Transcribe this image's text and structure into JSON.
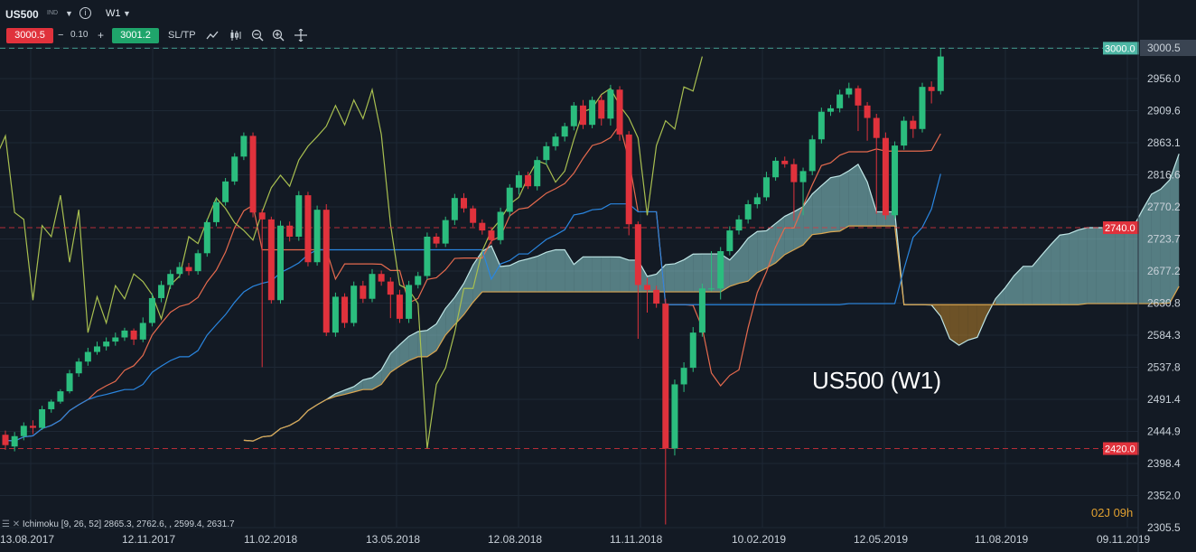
{
  "header": {
    "symbol": "US500",
    "symbol_tag": "IND",
    "timeframe": "W1",
    "sell_price": "3000.5",
    "spread": "0.10",
    "buy_price": "3001.2",
    "sl_tp_label": "SL/TP",
    "icons": [
      "line-chart-icon",
      "candles-icon",
      "zoom-out-icon",
      "zoom-in-icon",
      "crosshair-icon"
    ]
  },
  "colors": {
    "background": "#131a24",
    "bull": "#2bbd7e",
    "bear": "#e0323c",
    "tenkan": "#e56a4e",
    "kijun": "#2a86e0",
    "chikou": "#a8bf50",
    "kumo_bull": "#8ccfcf",
    "kumo_bear": "#b8822a",
    "price_line": "#4db6a4"
  },
  "indicator_legend": {
    "name": "Ichimoku [9, 26, 52]",
    "values": "2865.3, 2762.6, , 2599.4, 2631.7"
  },
  "countdown": "02J 09h",
  "chart_data": {
    "type": "candlestick",
    "title": "US500 (W1)",
    "ylim": [
      2305.5,
      3000.5
    ],
    "y_ticks": [
      "2305.5",
      "2352.0",
      "2398.4",
      "2444.9",
      "2491.4",
      "2537.8",
      "2584.3",
      "2630.8",
      "2677.2",
      "2723.7",
      "2770.2",
      "2816.6",
      "2863.1",
      "2909.6",
      "2956.0",
      "3000.5"
    ],
    "x_ticks": [
      "13.08.2017",
      "12.11.2017",
      "11.02.2018",
      "13.05.2018",
      "12.08.2018",
      "11.11.2018",
      "10.02.2019",
      "12.05.2019",
      "11.08.2019",
      "09.11.2019"
    ],
    "horizontal_levels": [
      {
        "label": "3000.0",
        "value": 3000.0,
        "style": "dashed",
        "color": "#4db6a4"
      },
      {
        "label": "2740.0",
        "value": 2740.0,
        "style": "dashed",
        "color": "#e0323c"
      },
      {
        "label": "2420.0",
        "value": 2420.0,
        "style": "dashed",
        "color": "#e0323c"
      }
    ],
    "current_price": "3000.5",
    "candles": [
      [
        2440,
        2425,
        2446,
        2418
      ],
      [
        2423,
        2438,
        2444,
        2416
      ],
      [
        2438,
        2453,
        2458,
        2432
      ],
      [
        2453,
        2450,
        2461,
        2441
      ],
      [
        2450,
        2477,
        2482,
        2447
      ],
      [
        2477,
        2488,
        2491,
        2472
      ],
      [
        2488,
        2503,
        2506,
        2485
      ],
      [
        2503,
        2529,
        2534,
        2500
      ],
      [
        2529,
        2546,
        2551,
        2524
      ],
      [
        2546,
        2560,
        2566,
        2540
      ],
      [
        2560,
        2568,
        2575,
        2556
      ],
      [
        2568,
        2575,
        2581,
        2562
      ],
      [
        2575,
        2581,
        2588,
        2569
      ],
      [
        2581,
        2591,
        2595,
        2576
      ],
      [
        2591,
        2578,
        2594,
        2570
      ],
      [
        2578,
        2602,
        2610,
        2574
      ],
      [
        2602,
        2638,
        2645,
        2597
      ],
      [
        2638,
        2657,
        2663,
        2632
      ],
      [
        2657,
        2673,
        2679,
        2651
      ],
      [
        2673,
        2683,
        2690,
        2667
      ],
      [
        2683,
        2677,
        2689,
        2671
      ],
      [
        2677,
        2703,
        2708,
        2672
      ],
      [
        2703,
        2748,
        2753,
        2698
      ],
      [
        2748,
        2777,
        2783,
        2742
      ],
      [
        2777,
        2807,
        2812,
        2772
      ],
      [
        2807,
        2843,
        2848,
        2802
      ],
      [
        2843,
        2873,
        2878,
        2838
      ],
      [
        2873,
        2762,
        2878,
        2755
      ],
      [
        2762,
        2752,
        2767,
        2538
      ],
      [
        2752,
        2635,
        2756,
        2630
      ],
      [
        2635,
        2743,
        2750,
        2630
      ],
      [
        2743,
        2727,
        2749,
        2720
      ],
      [
        2727,
        2787,
        2793,
        2721
      ],
      [
        2787,
        2690,
        2792,
        2684
      ],
      [
        2690,
        2766,
        2772,
        2685
      ],
      [
        2766,
        2588,
        2774,
        2583
      ],
      [
        2588,
        2640,
        2646,
        2582
      ],
      [
        2640,
        2602,
        2645,
        2595
      ],
      [
        2602,
        2656,
        2662,
        2597
      ],
      [
        2656,
        2637,
        2663,
        2631
      ],
      [
        2637,
        2673,
        2680,
        2632
      ],
      [
        2673,
        2662,
        2678,
        2656
      ],
      [
        2662,
        2643,
        2668,
        2609
      ],
      [
        2643,
        2608,
        2650,
        2602
      ],
      [
        2608,
        2657,
        2663,
        2602
      ],
      [
        2657,
        2670,
        2676,
        2652
      ],
      [
        2670,
        2727,
        2733,
        2665
      ],
      [
        2727,
        2717,
        2732,
        2711
      ],
      [
        2717,
        2751,
        2756,
        2712
      ],
      [
        2751,
        2783,
        2789,
        2744
      ],
      [
        2783,
        2768,
        2790,
        2762
      ],
      [
        2768,
        2747,
        2772,
        2741
      ],
      [
        2747,
        2736,
        2752,
        2730
      ],
      [
        2736,
        2722,
        2740,
        2716
      ],
      [
        2722,
        2763,
        2769,
        2716
      ],
      [
        2763,
        2798,
        2803,
        2756
      ],
      [
        2798,
        2816,
        2822,
        2788
      ],
      [
        2816,
        2800,
        2821,
        2796
      ],
      [
        2800,
        2838,
        2843,
        2794
      ],
      [
        2838,
        2858,
        2864,
        2831
      ],
      [
        2858,
        2872,
        2877,
        2852
      ],
      [
        2872,
        2887,
        2892,
        2865
      ],
      [
        2887,
        2917,
        2922,
        2881
      ],
      [
        2917,
        2889,
        2925,
        2883
      ],
      [
        2889,
        2925,
        2930,
        2884
      ],
      [
        2925,
        2898,
        2932,
        2888
      ],
      [
        2898,
        2940,
        2947,
        2888
      ],
      [
        2940,
        2875,
        2945,
        2866
      ],
      [
        2875,
        2745,
        2880,
        2729
      ],
      [
        2745,
        2657,
        2749,
        2579
      ],
      [
        2657,
        2650,
        2667,
        2617
      ],
      [
        2650,
        2630,
        2656,
        2624
      ],
      [
        2630,
        2420,
        2637,
        2310
      ],
      [
        2420,
        2513,
        2520,
        2410
      ],
      [
        2513,
        2537,
        2545,
        2502
      ],
      [
        2537,
        2588,
        2596,
        2531
      ],
      [
        2588,
        2652,
        2659,
        2582
      ],
      [
        2652,
        2652,
        2706,
        2648
      ],
      [
        2652,
        2706,
        2712,
        2636
      ],
      [
        2706,
        2736,
        2742,
        2700
      ],
      [
        2736,
        2752,
        2758,
        2730
      ],
      [
        2752,
        2774,
        2780,
        2746
      ],
      [
        2774,
        2784,
        2790,
        2768
      ],
      [
        2784,
        2813,
        2821,
        2779
      ],
      [
        2813,
        2837,
        2842,
        2808
      ],
      [
        2837,
        2832,
        2843,
        2827
      ],
      [
        2832,
        2806,
        2840,
        2750
      ],
      [
        2806,
        2822,
        2827,
        2758
      ],
      [
        2822,
        2868,
        2874,
        2816
      ],
      [
        2868,
        2908,
        2914,
        2862
      ],
      [
        2908,
        2913,
        2918,
        2902
      ],
      [
        2913,
        2933,
        2940,
        2907
      ],
      [
        2933,
        2942,
        2950,
        2928
      ],
      [
        2942,
        2917,
        2946,
        2880
      ],
      [
        2917,
        2899,
        2922,
        2866
      ],
      [
        2899,
        2870,
        2905,
        2760
      ],
      [
        2870,
        2758,
        2878,
        2752
      ],
      [
        2758,
        2859,
        2865,
        2753
      ],
      [
        2859,
        2895,
        2901,
        2853
      ],
      [
        2895,
        2883,
        2902,
        2870
      ],
      [
        2883,
        2944,
        2950,
        2878
      ],
      [
        2944,
        2938,
        2952,
        2920
      ],
      [
        2938,
        2988,
        3000,
        2933
      ]
    ]
  }
}
